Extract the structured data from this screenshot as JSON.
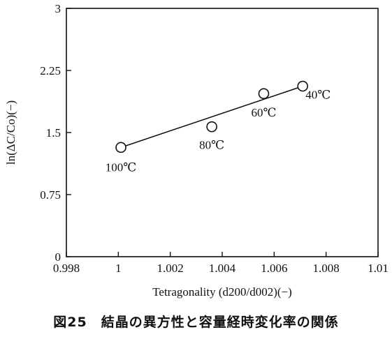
{
  "chart_data": {
    "type": "scatter",
    "xlabel": "Tetragonality (d200/d002)(−)",
    "ylabel": "ln(ΔC/Co)(−)",
    "xlim": [
      0.998,
      1.01
    ],
    "ylim": [
      0,
      3
    ],
    "x_ticks": [
      "0.998",
      "1",
      "1.002",
      "1.004",
      "1.006",
      "1.008",
      "1.01"
    ],
    "y_ticks": [
      "0",
      "0.75",
      "1.5",
      "2.25",
      "3"
    ],
    "grid": false,
    "series": [
      {
        "points": [
          {
            "x": 1.0001,
            "y": 1.32,
            "label": "100℃"
          },
          {
            "x": 1.0036,
            "y": 1.57,
            "label": "80℃"
          },
          {
            "x": 1.0056,
            "y": 1.97,
            "label": "60℃"
          },
          {
            "x": 1.0071,
            "y": 2.06,
            "label": "40℃"
          }
        ]
      }
    ],
    "fit_line": {
      "x": [
        1.0001,
        1.0071
      ],
      "y": [
        1.32,
        2.06
      ]
    }
  },
  "caption": "図25　結晶の異方性と容量経時変化率の関係"
}
